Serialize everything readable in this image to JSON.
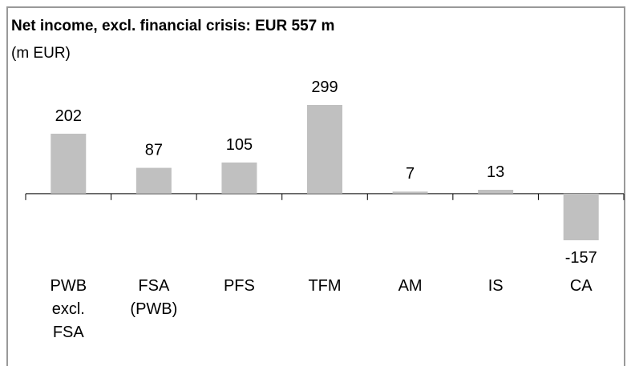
{
  "chart_data": {
    "type": "bar",
    "title": "Net income, excl. financial crisis: EUR 557 m",
    "subtitle": "(m EUR)",
    "categories": [
      "PWB excl. FSA",
      "FSA (PWB)",
      "PFS",
      "TFM",
      "AM",
      "IS",
      "CA"
    ],
    "values": [
      202,
      87,
      105,
      299,
      7,
      13,
      -157
    ],
    "color": "#c0c0c0"
  }
}
